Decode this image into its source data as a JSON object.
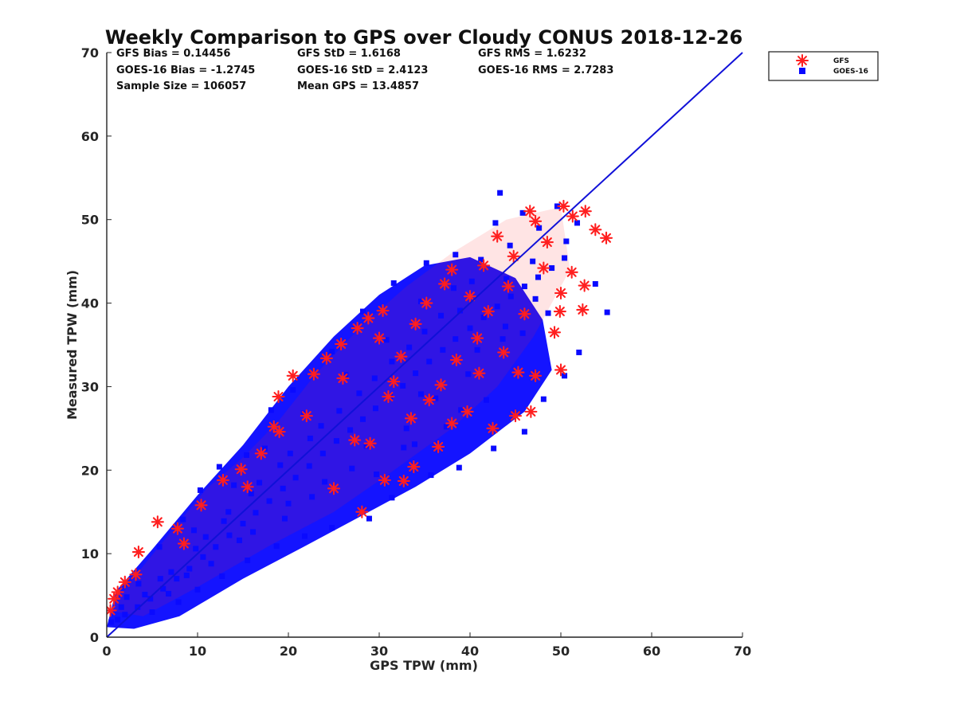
{
  "chart_data": {
    "type": "scatter",
    "title": "Weekly Comparison to GPS over Cloudy CONUS 2018-12-26",
    "xlabel": "GPS TPW (mm)",
    "ylabel": "Measured TPW (mm)",
    "xlim": [
      0,
      70
    ],
    "ylim": [
      0,
      70
    ],
    "x_ticks": [
      "0",
      "10",
      "20",
      "30",
      "40",
      "50",
      "60",
      "70"
    ],
    "y_ticks": [
      "0",
      "10",
      "20",
      "30",
      "40",
      "50",
      "60",
      "70"
    ],
    "grid": false,
    "legend_position": "outside-top-right",
    "reference_line": {
      "kind": "1:1",
      "x": [
        0,
        70
      ],
      "y": [
        0,
        70
      ],
      "color": "#1010d8"
    },
    "stats": [
      [
        "GFS Bias = 0.14456",
        "GFS StD = 1.6168",
        "GFS RMS = 1.6232"
      ],
      [
        "GOES-16 Bias = -1.2745",
        "GOES-16 StD = 2.4123",
        "GOES-16 RMS = 2.7283"
      ],
      [
        "Sample Size = 106057",
        "Mean GPS = 13.4857"
      ]
    ],
    "series": [
      {
        "name": "GFS",
        "marker": "asterisk",
        "color": "#ff1f1f",
        "points": [
          [
            0.4,
            3.2
          ],
          [
            0.8,
            4.6
          ],
          [
            1.2,
            5.4
          ],
          [
            2.0,
            6.6
          ],
          [
            3.5,
            10.2
          ],
          [
            5.6,
            13.8
          ],
          [
            7.8,
            13.0
          ],
          [
            10.4,
            15.8
          ],
          [
            12.8,
            18.8
          ],
          [
            14.8,
            20.1
          ],
          [
            18.4,
            25.2
          ],
          [
            18.9,
            28.8
          ],
          [
            20.5,
            31.3
          ],
          [
            22.8,
            31.5
          ],
          [
            24.2,
            33.4
          ],
          [
            25.8,
            35.1
          ],
          [
            27.6,
            37.0
          ],
          [
            28.8,
            38.2
          ],
          [
            30.4,
            39.1
          ],
          [
            31.6,
            30.6
          ],
          [
            32.7,
            18.7
          ],
          [
            28.1,
            15.0
          ],
          [
            30.6,
            18.8
          ],
          [
            33.8,
            20.4
          ],
          [
            36.5,
            22.8
          ],
          [
            38.0,
            25.6
          ],
          [
            39.7,
            27.0
          ],
          [
            42.5,
            25.0
          ],
          [
            45.0,
            26.5
          ],
          [
            46.7,
            27.0
          ],
          [
            45.3,
            31.7
          ],
          [
            47.2,
            31.3
          ],
          [
            50.0,
            32.0
          ],
          [
            49.3,
            36.5
          ],
          [
            49.9,
            39.0
          ],
          [
            50.0,
            41.2
          ],
          [
            51.2,
            43.7
          ],
          [
            52.4,
            39.2
          ],
          [
            52.6,
            42.1
          ],
          [
            53.8,
            48.8
          ],
          [
            55.0,
            47.8
          ],
          [
            52.7,
            51.0
          ],
          [
            51.3,
            50.4
          ],
          [
            50.3,
            51.6
          ],
          [
            47.2,
            49.8
          ],
          [
            46.6,
            51.0
          ],
          [
            43.0,
            48.0
          ],
          [
            41.5,
            44.5
          ],
          [
            38.0,
            44.0
          ],
          [
            37.2,
            42.3
          ],
          [
            35.2,
            40.0
          ],
          [
            34.0,
            37.5
          ],
          [
            32.4,
            33.6
          ],
          [
            27.3,
            23.6
          ],
          [
            25.0,
            17.8
          ],
          [
            29.0,
            23.2
          ],
          [
            31.0,
            28.8
          ],
          [
            40.0,
            40.8
          ],
          [
            44.8,
            45.6
          ],
          [
            48.5,
            47.3
          ],
          [
            43.7,
            34.1
          ],
          [
            41.0,
            31.6
          ],
          [
            36.8,
            30.2
          ],
          [
            33.5,
            26.2
          ],
          [
            19.0,
            24.6
          ],
          [
            17.0,
            22.0
          ],
          [
            8.5,
            11.2
          ],
          [
            3.2,
            7.5
          ],
          [
            26.0,
            31.0
          ],
          [
            35.5,
            28.4
          ],
          [
            40.8,
            35.8
          ],
          [
            46.0,
            38.7
          ],
          [
            48.1,
            44.2
          ],
          [
            44.2,
            42.0
          ],
          [
            30.0,
            35.8
          ],
          [
            38.5,
            33.2
          ],
          [
            42.0,
            39.0
          ],
          [
            22.0,
            26.5
          ],
          [
            15.5,
            18.0
          ]
        ]
      },
      {
        "name": "GOES-16",
        "marker": "square",
        "color": "#0a0aff",
        "points": [
          [
            0.5,
            1.8
          ],
          [
            1.2,
            2.1
          ],
          [
            2.0,
            2.7
          ],
          [
            3.4,
            3.6
          ],
          [
            4.8,
            4.6
          ],
          [
            6.2,
            5.8
          ],
          [
            7.7,
            7.0
          ],
          [
            9.1,
            8.2
          ],
          [
            10.6,
            9.6
          ],
          [
            12.0,
            10.8
          ],
          [
            13.5,
            12.2
          ],
          [
            15.0,
            13.6
          ],
          [
            16.4,
            14.9
          ],
          [
            17.9,
            16.3
          ],
          [
            19.4,
            17.8
          ],
          [
            20.8,
            19.1
          ],
          [
            22.3,
            20.5
          ],
          [
            23.8,
            22.0
          ],
          [
            25.3,
            23.5
          ],
          [
            26.8,
            24.8
          ],
          [
            28.2,
            26.1
          ],
          [
            29.6,
            27.4
          ],
          [
            31.2,
            28.8
          ],
          [
            32.6,
            30.1
          ],
          [
            34.0,
            31.6
          ],
          [
            35.5,
            33.0
          ],
          [
            37.0,
            34.4
          ],
          [
            38.4,
            35.7
          ],
          [
            40.0,
            37.0
          ],
          [
            41.5,
            38.3
          ],
          [
            43.0,
            39.6
          ],
          [
            44.5,
            40.8
          ],
          [
            46.0,
            42.0
          ],
          [
            47.5,
            43.1
          ],
          [
            49.0,
            44.2
          ],
          [
            50.4,
            45.4
          ],
          [
            5.8,
            10.8
          ],
          [
            8.4,
            14.1
          ],
          [
            10.3,
            17.6
          ],
          [
            12.4,
            20.4
          ],
          [
            15.4,
            21.8
          ],
          [
            18.1,
            27.2
          ],
          [
            20.5,
            29.6
          ],
          [
            24.8,
            34.2
          ],
          [
            28.2,
            39.0
          ],
          [
            31.6,
            42.4
          ],
          [
            35.2,
            44.8
          ],
          [
            38.4,
            45.8
          ],
          [
            42.8,
            49.6
          ],
          [
            45.8,
            50.8
          ],
          [
            49.6,
            51.6
          ],
          [
            43.3,
            53.2
          ],
          [
            47.6,
            49.0
          ],
          [
            53.8,
            42.3
          ],
          [
            55.1,
            38.9
          ],
          [
            52.0,
            34.1
          ],
          [
            50.4,
            31.3
          ],
          [
            48.1,
            28.5
          ],
          [
            46.0,
            24.6
          ],
          [
            42.6,
            22.6
          ],
          [
            38.8,
            20.3
          ],
          [
            35.7,
            19.4
          ],
          [
            31.4,
            16.7
          ],
          [
            28.9,
            14.2
          ],
          [
            24.8,
            13.1
          ],
          [
            21.8,
            12.1
          ],
          [
            18.7,
            10.9
          ],
          [
            15.5,
            9.2
          ],
          [
            12.7,
            7.3
          ],
          [
            10.0,
            5.7
          ],
          [
            7.9,
            4.2
          ],
          [
            5.0,
            3.0
          ],
          [
            26.3,
            31.4
          ],
          [
            30.8,
            35.6
          ],
          [
            34.6,
            40.2
          ],
          [
            38.2,
            41.8
          ],
          [
            41.2,
            45.2
          ],
          [
            44.4,
            46.9
          ],
          [
            21.7,
            26.8
          ],
          [
            17.4,
            22.6
          ],
          [
            14.0,
            18.2
          ],
          [
            9.6,
            12.8
          ],
          [
            3.5,
            6.4
          ],
          [
            2.2,
            4.8
          ],
          [
            33.0,
            25.0
          ],
          [
            36.2,
            28.6
          ],
          [
            39.8,
            31.5
          ],
          [
            43.6,
            35.7
          ],
          [
            27.0,
            20.2
          ],
          [
            22.6,
            16.8
          ],
          [
            19.6,
            14.2
          ],
          [
            16.1,
            12.6
          ],
          [
            11.5,
            8.8
          ],
          [
            6.8,
            5.2
          ],
          [
            47.2,
            40.5
          ],
          [
            50.6,
            47.4
          ],
          [
            51.8,
            49.6
          ],
          [
            40.2,
            42.6
          ],
          [
            36.8,
            38.5
          ],
          [
            33.3,
            34.7
          ],
          [
            29.5,
            31.0
          ],
          [
            25.6,
            27.1
          ],
          [
            22.4,
            23.8
          ],
          [
            19.1,
            20.6
          ],
          [
            15.9,
            17.2
          ],
          [
            12.9,
            13.9
          ],
          [
            9.8,
            10.6
          ],
          [
            7.1,
            7.8
          ],
          [
            45.8,
            36.4
          ],
          [
            48.6,
            38.8
          ],
          [
            41.8,
            28.4
          ],
          [
            37.4,
            25.2
          ],
          [
            32.7,
            22.7
          ],
          [
            29.7,
            19.5
          ],
          [
            24.0,
            18.6
          ],
          [
            20.0,
            16.0
          ],
          [
            14.6,
            11.6
          ],
          [
            8.8,
            7.4
          ],
          [
            4.2,
            5.1
          ],
          [
            1.6,
            3.6
          ],
          [
            46.9,
            45.0
          ],
          [
            44.0,
            42.9
          ],
          [
            38.9,
            39.1
          ],
          [
            35.0,
            36.6
          ],
          [
            31.4,
            33.0
          ],
          [
            27.8,
            29.2
          ],
          [
            23.6,
            25.3
          ],
          [
            20.2,
            22.0
          ],
          [
            16.8,
            18.5
          ],
          [
            13.4,
            15.0
          ],
          [
            10.9,
            12.0
          ],
          [
            5.9,
            7.0
          ],
          [
            28.6,
            22.9
          ],
          [
            34.6,
            29.1
          ],
          [
            40.8,
            34.4
          ],
          [
            43.9,
            37.2
          ],
          [
            39.0,
            27.2
          ],
          [
            33.9,
            23.1
          ]
        ]
      }
    ]
  }
}
